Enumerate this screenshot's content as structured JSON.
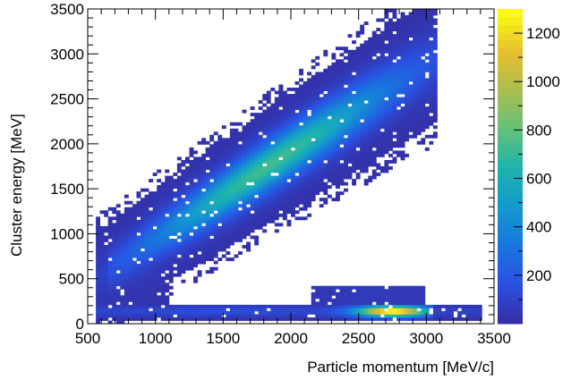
{
  "chart_data": {
    "type": "heatmap",
    "title": "",
    "xlabel": "Particle momentum [MeV/c]",
    "ylabel": "Cluster energy [MeV]",
    "xlim": [
      500,
      3500
    ],
    "ylim": [
      0,
      3500
    ],
    "x_ticks": [
      500,
      1000,
      1500,
      2000,
      2500,
      3000,
      3500
    ],
    "y_ticks": [
      0,
      500,
      1000,
      1500,
      2000,
      2500,
      3000,
      3500
    ],
    "z_range": [
      0,
      1300
    ],
    "colorbar_ticks": [
      200,
      400,
      600,
      800,
      1000,
      1200
    ],
    "colormap": "viridis-like (blue to yellow)",
    "grid": false,
    "regions": [
      {
        "name": "",
        "description_values": "diagonal band: energy ≈ momentum",
        "x_range": [
          550,
          3000
        ],
        "y_center_at_x": [
          [
            600,
            560
          ],
          [
            1000,
            950
          ],
          [
            1500,
            1430
          ],
          [
            2000,
            1920
          ],
          [
            2500,
            2400
          ],
          [
            2900,
            2780
          ]
        ],
        "peak_counts": 700
      },
      {
        "name": "",
        "description_values": "low-energy horizontal band",
        "x_range": [
          550,
          3400
        ],
        "y_range": [
          40,
          220
        ],
        "peak_counts": 1300,
        "peak_x": 2750
      }
    ]
  }
}
